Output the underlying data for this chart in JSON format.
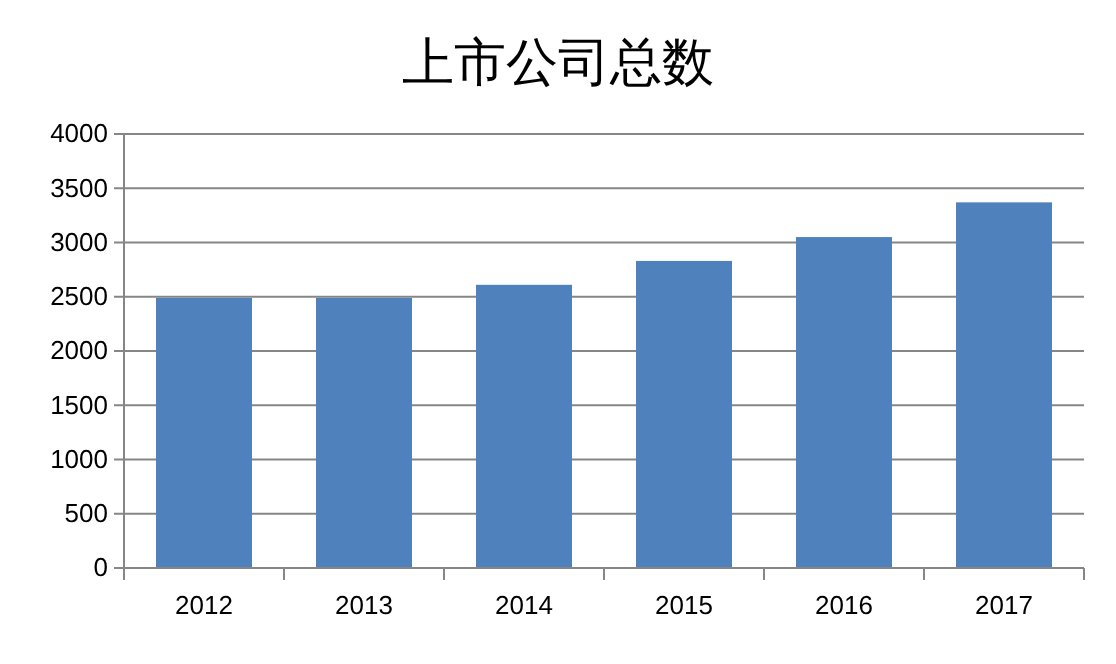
{
  "chart_data": {
    "type": "bar",
    "title": "上市公司总数",
    "categories": [
      "2012",
      "2013",
      "2014",
      "2015",
      "2016",
      "2017"
    ],
    "values": [
      2490,
      2490,
      2610,
      2830,
      3050,
      3370
    ],
    "color": "#4f81bd",
    "ylim": [
      0,
      4000
    ],
    "yticks": [
      0,
      500,
      1000,
      1500,
      2000,
      2500,
      3000,
      3500,
      4000
    ],
    "grid": "y"
  }
}
